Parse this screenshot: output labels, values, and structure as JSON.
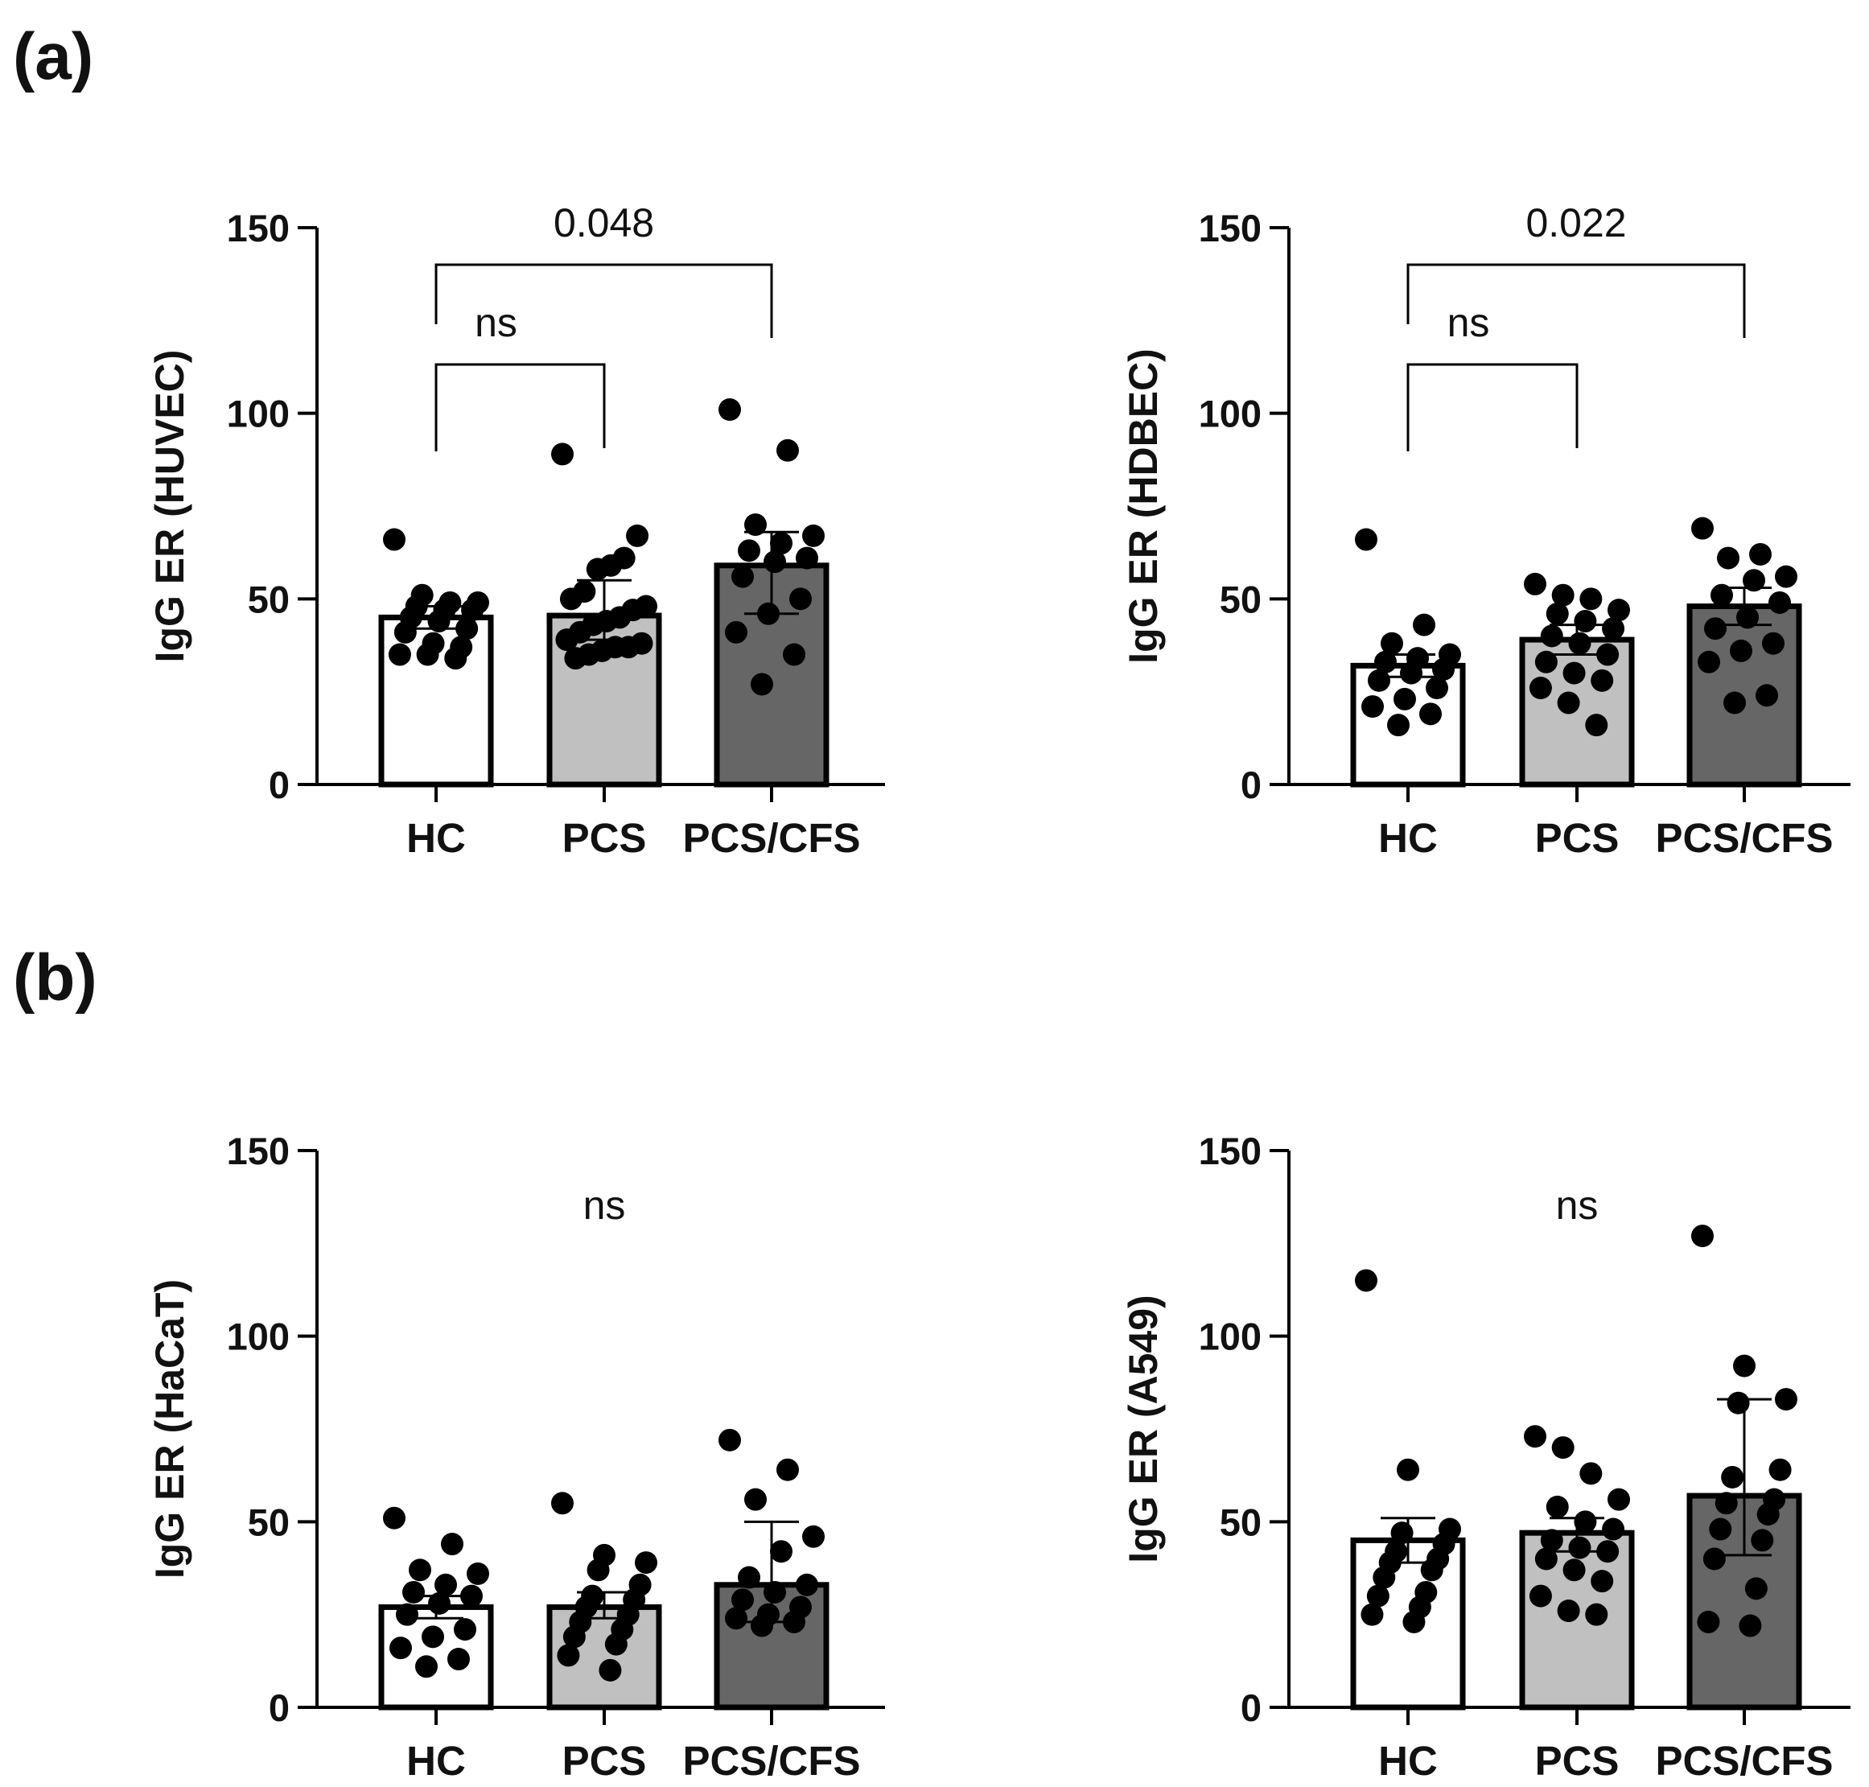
{
  "panel_labels": [
    "(a)",
    "(b)"
  ],
  "colors": {
    "hc": "#ffffff",
    "pcs": "#c0c0c0",
    "pcs_cfs": "#666666",
    "ink": "#000000"
  },
  "chart_data": [
    {
      "type": "bar",
      "panel": "(a)",
      "ylabel": "IgG ER (HUVEC)",
      "ylim": [
        0,
        150
      ],
      "yticks": [
        0,
        50,
        100,
        150
      ],
      "categories": [
        "HC",
        "PCS",
        "PCS/CFS"
      ],
      "values": [
        45,
        45.5,
        59
      ],
      "error": [
        [
          42,
          48
        ],
        [
          39,
          55
        ],
        [
          46,
          68
        ]
      ],
      "points": [
        [
          66,
          51,
          49,
          49,
          48,
          47,
          47,
          45,
          44,
          42,
          41,
          38,
          37,
          35,
          35,
          34
        ],
        [
          89,
          67,
          61,
          59,
          58,
          52,
          50,
          48,
          47,
          45,
          44,
          43,
          41,
          39,
          38,
          37,
          37,
          36,
          35,
          34
        ],
        [
          101,
          90,
          70,
          67,
          65,
          63,
          61,
          60,
          56,
          50,
          46,
          41,
          35,
          27
        ]
      ],
      "comparisons": [
        {
          "from": 0,
          "to": 1,
          "label": "ns"
        },
        {
          "from": 0,
          "to": 2,
          "label": "0.048"
        }
      ]
    },
    {
      "type": "bar",
      "panel": "(a)",
      "ylabel": "IgG ER (HDBEC)",
      "ylim": [
        0,
        150
      ],
      "yticks": [
        0,
        50,
        100,
        150
      ],
      "categories": [
        "HC",
        "PCS",
        "PCS/CFS"
      ],
      "values": [
        32,
        39,
        48
      ],
      "error": [
        [
          29,
          35
        ],
        [
          35,
          43
        ],
        [
          43,
          53
        ]
      ],
      "points": [
        [
          66,
          43,
          38,
          35,
          34,
          33,
          31,
          30,
          28,
          26,
          23,
          21,
          19,
          16
        ],
        [
          54,
          51,
          50,
          47,
          46,
          44,
          42,
          40,
          38,
          35,
          33,
          30,
          28,
          26,
          22,
          16
        ],
        [
          69,
          62,
          61,
          56,
          55,
          51,
          49,
          45,
          42,
          38,
          36,
          33,
          24,
          22
        ]
      ],
      "comparisons": [
        {
          "from": 0,
          "to": 1,
          "label": "ns"
        },
        {
          "from": 0,
          "to": 2,
          "label": "0.022"
        }
      ]
    },
    {
      "type": "bar",
      "panel": "(b)",
      "ylabel": "IgG ER (HaCaT)",
      "ylim": [
        0,
        150
      ],
      "yticks": [
        0,
        50,
        100,
        150
      ],
      "categories": [
        "HC",
        "PCS",
        "PCS/CFS"
      ],
      "values": [
        27,
        27,
        33
      ],
      "error": [
        [
          24,
          30
        ],
        [
          24,
          31
        ],
        [
          23,
          50
        ]
      ],
      "points": [
        [
          51,
          44,
          37,
          36,
          33,
          31,
          30,
          28,
          25,
          21,
          19,
          16,
          13,
          11
        ],
        [
          55,
          41,
          39,
          37,
          33,
          30,
          29,
          27,
          25,
          23,
          21,
          19,
          17,
          14,
          10
        ],
        [
          72,
          64,
          56,
          46,
          42,
          35,
          33,
          31,
          29,
          27,
          25,
          24,
          23,
          22
        ]
      ],
      "comparisons": [
        {
          "label": "ns",
          "at": 1
        }
      ]
    },
    {
      "type": "bar",
      "panel": "(b)",
      "ylabel": "IgG ER (A549)",
      "ylim": [
        0,
        150
      ],
      "yticks": [
        0,
        50,
        100,
        150
      ],
      "categories": [
        "HC",
        "PCS",
        "PCS/CFS"
      ],
      "values": [
        45,
        47,
        57
      ],
      "error": [
        [
          39,
          51
        ],
        [
          42,
          51
        ],
        [
          41,
          83
        ]
      ],
      "points": [
        [
          115,
          64,
          48,
          47,
          44,
          42,
          40,
          39,
          37,
          35,
          31,
          30,
          27,
          25,
          23
        ],
        [
          73,
          70,
          63,
          56,
          54,
          50,
          48,
          45,
          43,
          42,
          40,
          37,
          34,
          30,
          26,
          25
        ],
        [
          127,
          92,
          83,
          82,
          64,
          62,
          56,
          55,
          52,
          48,
          45,
          40,
          32,
          23,
          22
        ]
      ],
      "comparisons": [
        {
          "label": "ns",
          "at": 1
        }
      ]
    }
  ]
}
